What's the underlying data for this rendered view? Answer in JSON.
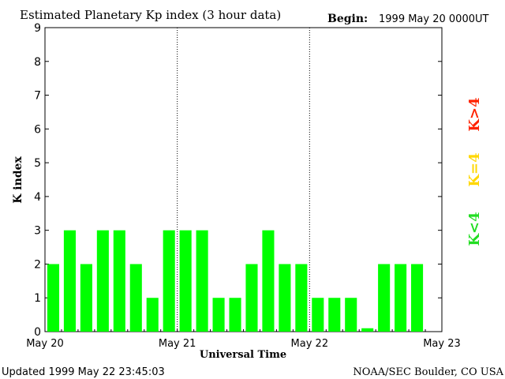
{
  "chart_data": {
    "type": "bar",
    "title": "Estimated Planetary Kp index (3 hour data)",
    "begin_label": "Begin:",
    "begin_value": "1999 May 20 0000UT",
    "ylabel": "K index",
    "xlabel": "Universal Time",
    "ylim": [
      0,
      9
    ],
    "y_ticks": [
      "0",
      "1",
      "2",
      "3",
      "4",
      "5",
      "6",
      "7",
      "8",
      "9"
    ],
    "x_tick_labels": [
      "May 20",
      "May 21",
      "May 22",
      "May 23"
    ],
    "x_range_days": [
      0,
      3
    ],
    "bar_period_hours": 3,
    "values": [
      2,
      3,
      2,
      3,
      3,
      2,
      1,
      3,
      3,
      3,
      1,
      1,
      2,
      3,
      2,
      2,
      1,
      1,
      1,
      0.1,
      2,
      2,
      2
    ],
    "bar_color": "#00ff00",
    "legend": [
      {
        "label": "K<4",
        "color": "#22dd22"
      },
      {
        "label": "K=4",
        "color": "#ffd700"
      },
      {
        "label": "K>4",
        "color": "#ff2200"
      }
    ],
    "legend_placement": "right",
    "grid": false
  },
  "footer": {
    "updated": "Updated 1999 May 22 23:45:03",
    "credit": "NOAA/SEC Boulder, CO USA"
  }
}
